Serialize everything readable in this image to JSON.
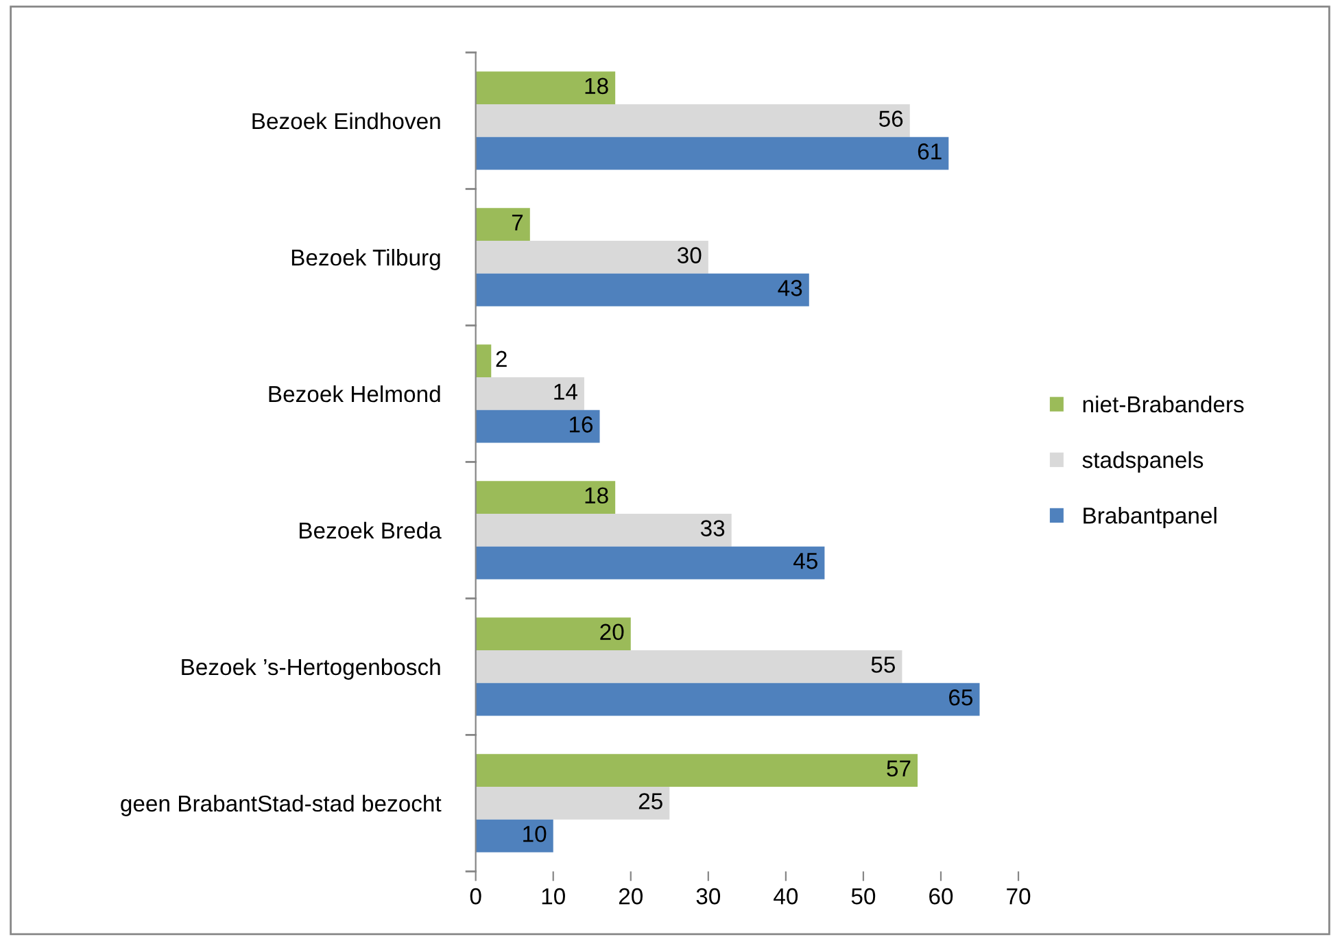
{
  "chart_data": {
    "type": "bar",
    "orientation": "horizontal",
    "categories": [
      "Bezoek Eindhoven",
      "Bezoek Tilburg",
      "Bezoek Helmond",
      "Bezoek Breda",
      "Bezoek ’s-Hertogenbosch",
      "geen BrabantStad-stad bezocht"
    ],
    "series": [
      {
        "name": "niet-Brabanders",
        "color": "#9bbb59",
        "values": [
          18,
          7,
          2,
          18,
          20,
          57
        ]
      },
      {
        "name": "stadspanels",
        "color": "#d9d9d9",
        "values": [
          56,
          30,
          14,
          33,
          55,
          25
        ]
      },
      {
        "name": "Brabantpanel",
        "color": "#4f81bd",
        "values": [
          61,
          43,
          16,
          45,
          65,
          10
        ]
      }
    ],
    "xlim": [
      0,
      70
    ],
    "xticks": [
      0,
      10,
      20,
      30,
      40,
      50,
      60,
      70
    ],
    "data_labels": true,
    "legend": "right",
    "grid": false
  }
}
